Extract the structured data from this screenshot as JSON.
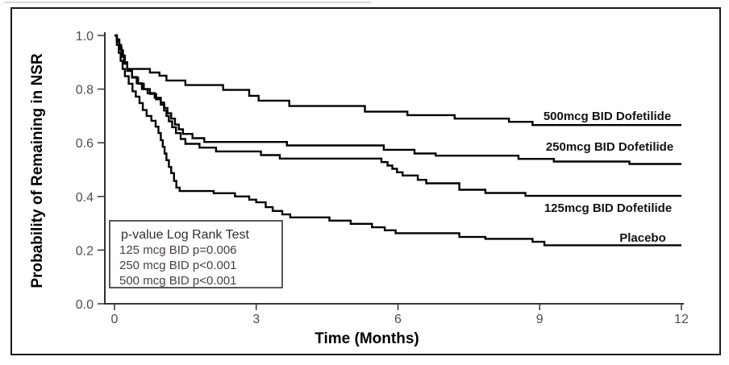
{
  "figure": {
    "background": "#ffffff",
    "border_color": "#1a1a1a",
    "curve_color": "#000000"
  },
  "chart_data": {
    "type": "line",
    "subtype": "kaplan-meier-step-survival",
    "title": "",
    "xlabel": "Time (Months)",
    "ylabel": "Probability of Remaining in NSR",
    "xlim": [
      0,
      12
    ],
    "ylim": [
      0.0,
      1.0
    ],
    "x_ticks": [
      "0",
      "3",
      "6",
      "9",
      "12"
    ],
    "y_ticks": [
      "1.0",
      "0.8",
      "0.6",
      "0.4",
      "0.2",
      "0.0"
    ],
    "grid": false,
    "legend_position": "inline-right-labels",
    "series": [
      {
        "name": "500mcg BID Dofetilide",
        "points": [
          [
            0,
            1.0
          ],
          [
            0.05,
            0.985
          ],
          [
            0.1,
            0.965
          ],
          [
            0.14,
            0.945
          ],
          [
            0.18,
            0.925
          ],
          [
            0.22,
            0.9
          ],
          [
            0.27,
            0.875
          ],
          [
            0.75,
            0.862
          ],
          [
            0.95,
            0.85
          ],
          [
            1.1,
            0.832
          ],
          [
            1.5,
            0.815
          ],
          [
            2.3,
            0.797
          ],
          [
            2.85,
            0.775
          ],
          [
            3.05,
            0.757
          ],
          [
            3.7,
            0.737
          ],
          [
            5.3,
            0.716
          ],
          [
            6.2,
            0.703
          ],
          [
            7.2,
            0.69
          ],
          [
            8.35,
            0.678
          ],
          [
            8.85,
            0.666
          ],
          [
            12,
            0.666
          ]
        ]
      },
      {
        "name": "250mcg BID Dofetilide",
        "points": [
          [
            0,
            1.0
          ],
          [
            0.05,
            0.98
          ],
          [
            0.1,
            0.955
          ],
          [
            0.15,
            0.925
          ],
          [
            0.2,
            0.9
          ],
          [
            0.27,
            0.87
          ],
          [
            0.37,
            0.845
          ],
          [
            0.47,
            0.822
          ],
          [
            0.58,
            0.8
          ],
          [
            0.7,
            0.785
          ],
          [
            0.85,
            0.768
          ],
          [
            0.98,
            0.75
          ],
          [
            1.05,
            0.73
          ],
          [
            1.12,
            0.71
          ],
          [
            1.2,
            0.69
          ],
          [
            1.28,
            0.668
          ],
          [
            1.36,
            0.65
          ],
          [
            1.45,
            0.633
          ],
          [
            1.65,
            0.617
          ],
          [
            1.9,
            0.603
          ],
          [
            3.65,
            0.59
          ],
          [
            5.7,
            0.574
          ],
          [
            6.35,
            0.56
          ],
          [
            6.8,
            0.552
          ],
          [
            8.55,
            0.54
          ],
          [
            9.3,
            0.53
          ],
          [
            10.9,
            0.521
          ],
          [
            12,
            0.521
          ]
        ]
      },
      {
        "name": "125mcg BID Dofetilide",
        "points": [
          [
            0,
            1.0
          ],
          [
            0.05,
            0.978
          ],
          [
            0.1,
            0.95
          ],
          [
            0.15,
            0.92
          ],
          [
            0.2,
            0.895
          ],
          [
            0.27,
            0.868
          ],
          [
            0.37,
            0.843
          ],
          [
            0.5,
            0.82
          ],
          [
            0.62,
            0.8
          ],
          [
            0.75,
            0.782
          ],
          [
            0.88,
            0.762
          ],
          [
            0.98,
            0.742
          ],
          [
            1.05,
            0.72
          ],
          [
            1.1,
            0.7
          ],
          [
            1.15,
            0.68
          ],
          [
            1.22,
            0.658
          ],
          [
            1.3,
            0.636
          ],
          [
            1.4,
            0.614
          ],
          [
            1.5,
            0.596
          ],
          [
            1.8,
            0.582
          ],
          [
            2.15,
            0.568
          ],
          [
            3.1,
            0.554
          ],
          [
            3.5,
            0.541
          ],
          [
            5.65,
            0.528
          ],
          [
            5.78,
            0.515
          ],
          [
            5.88,
            0.503
          ],
          [
            5.98,
            0.49
          ],
          [
            6.1,
            0.478
          ],
          [
            6.42,
            0.462
          ],
          [
            6.6,
            0.449
          ],
          [
            7.3,
            0.425
          ],
          [
            7.85,
            0.413
          ],
          [
            8.7,
            0.402
          ],
          [
            12,
            0.402
          ]
        ]
      },
      {
        "name": "Placebo",
        "points": [
          [
            0,
            1.0
          ],
          [
            0.05,
            0.965
          ],
          [
            0.09,
            0.935
          ],
          [
            0.13,
            0.905
          ],
          [
            0.17,
            0.875
          ],
          [
            0.22,
            0.848
          ],
          [
            0.3,
            0.82
          ],
          [
            0.38,
            0.792
          ],
          [
            0.45,
            0.772
          ],
          [
            0.53,
            0.748
          ],
          [
            0.6,
            0.722
          ],
          [
            0.68,
            0.7
          ],
          [
            0.78,
            0.682
          ],
          [
            0.87,
            0.66
          ],
          [
            0.93,
            0.636
          ],
          [
            0.98,
            0.61
          ],
          [
            1.02,
            0.585
          ],
          [
            1.06,
            0.56
          ],
          [
            1.1,
            0.535
          ],
          [
            1.15,
            0.51
          ],
          [
            1.2,
            0.487
          ],
          [
            1.26,
            0.458
          ],
          [
            1.31,
            0.433
          ],
          [
            1.38,
            0.42
          ],
          [
            2.1,
            0.412
          ],
          [
            2.55,
            0.4
          ],
          [
            2.85,
            0.388
          ],
          [
            3.0,
            0.378
          ],
          [
            3.2,
            0.36
          ],
          [
            3.35,
            0.346
          ],
          [
            3.55,
            0.333
          ],
          [
            3.72,
            0.322
          ],
          [
            4.55,
            0.31
          ],
          [
            5.0,
            0.298
          ],
          [
            5.45,
            0.285
          ],
          [
            5.72,
            0.274
          ],
          [
            5.95,
            0.263
          ],
          [
            7.3,
            0.249
          ],
          [
            7.85,
            0.242
          ],
          [
            8.85,
            0.231
          ],
          [
            9.1,
            0.218
          ],
          [
            12,
            0.218
          ]
        ]
      }
    ],
    "annotation_box": {
      "title": "p-value Log Rank Test",
      "lines": [
        "125 mcg BID p=0.006",
        "250 mcg BID p<0.001",
        "500 mcg BID p<0.001"
      ]
    }
  }
}
